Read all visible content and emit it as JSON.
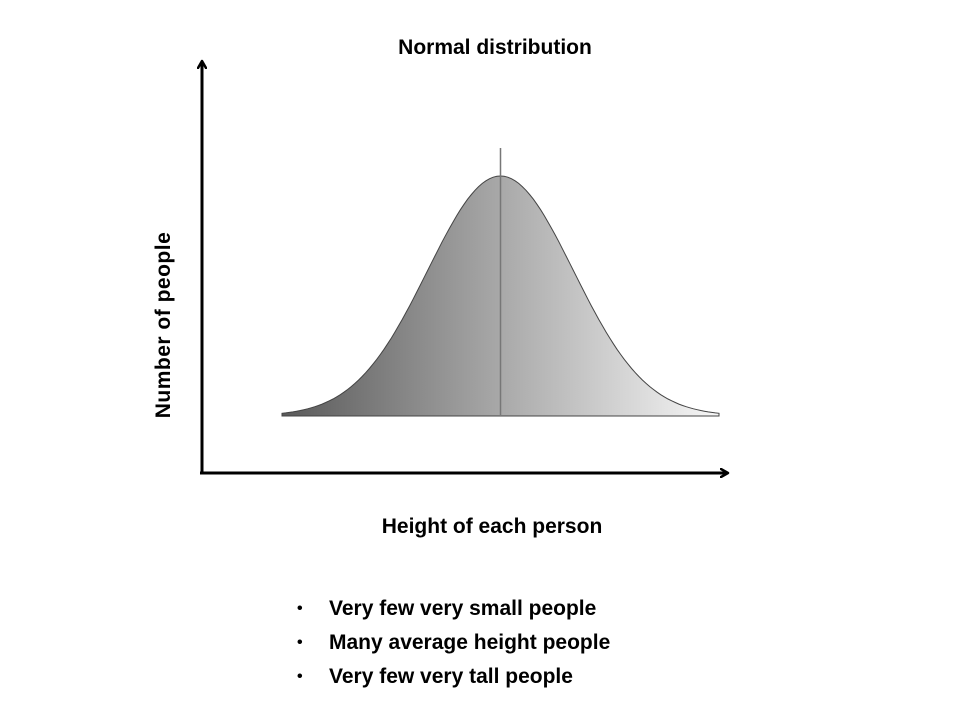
{
  "chart_data": {
    "type": "area",
    "title": "Normal distribution",
    "xlabel": "Height of each person",
    "ylabel": "Number of people",
    "distribution": "normal",
    "x": [
      -3.0,
      -2.75,
      -2.5,
      -2.25,
      -2.0,
      -1.75,
      -1.5,
      -1.25,
      -1.0,
      -0.75,
      -0.5,
      -0.25,
      0.0,
      0.25,
      0.5,
      0.75,
      1.0,
      1.25,
      1.5,
      1.75,
      2.0,
      2.25,
      2.5,
      2.75,
      3.0
    ],
    "y": [
      0.011,
      0.023,
      0.044,
      0.079,
      0.135,
      0.216,
      0.325,
      0.458,
      0.607,
      0.755,
      0.882,
      0.969,
      1.0,
      0.969,
      0.882,
      0.755,
      0.607,
      0.458,
      0.325,
      0.216,
      0.135,
      0.079,
      0.044,
      0.023,
      0.011
    ],
    "xlim": [
      -3.0,
      3.0
    ],
    "ylim": [
      0,
      1.0
    ],
    "mean_line": 0,
    "ticks": "none",
    "grid": false,
    "fill": "gradient dark-to-light gray"
  },
  "bullets": [
    "Very few very small people",
    "Many average height people",
    "Very few very tall people"
  ],
  "bullet_symbol": "•",
  "colors": {
    "axis": "#000000",
    "curve_fill_dark": "#5a5a5a",
    "curve_fill_light": "#f7f7f7",
    "curve_stroke": "#444444",
    "mean_line": "#777777"
  }
}
